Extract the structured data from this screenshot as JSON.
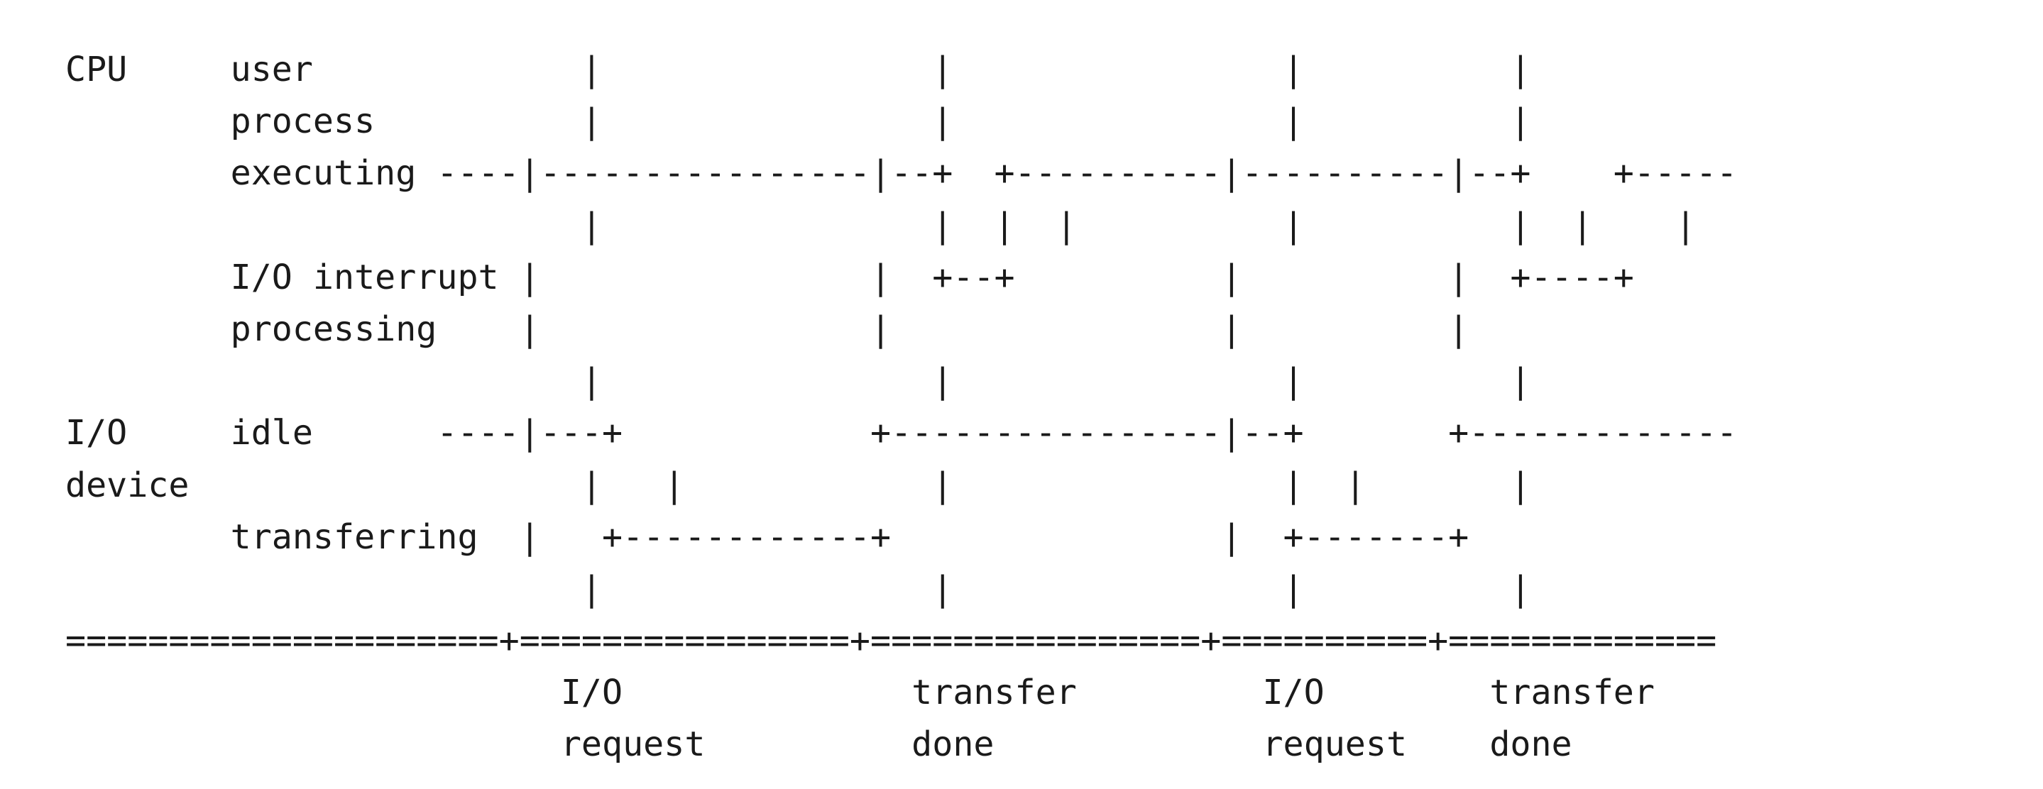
{
  "diagram": {
    "lines": [
      "CPU     user             |                |                |          |",
      "        process          |                |                |          |",
      "        executing ----|----------------|--+  +----------|----------|--+    +-----",
      "                         |                |  |  |          |          |  |    |",
      "        I/O interrupt |                |  +--+          |          |  +----+",
      "        processing    |                |                |          |",
      "                         |                |                |          |",
      "I/O     idle      ----|---+            +----------------|--+       +-------------",
      "device                   |   |            |                |  |       |",
      "        transferring  |   +------------+                |  +-------+",
      "                         |                |                |          |",
      "=====================+================+================+==========+=============",
      "                        I/O              transfer         I/O        transfer",
      "                        request          done             request    done"
    ]
  }
}
